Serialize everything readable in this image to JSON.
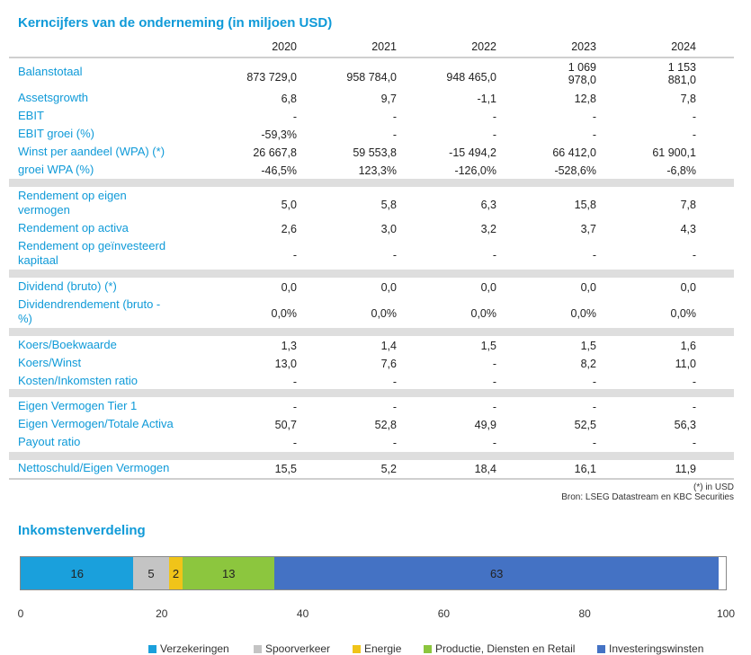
{
  "title": "Kerncijfers van de onderneming (in miljoen USD)",
  "years": [
    "2020",
    "2021",
    "2022",
    "2023",
    "2024"
  ],
  "groups": [
    {
      "rows": [
        {
          "label": "Balanstotaal",
          "values": [
            "873 729,0",
            "958 784,0",
            "948 465,0",
            "1 069\n978,0",
            "1 153\n881,0"
          ]
        },
        {
          "label": "Assetsgrowth",
          "values": [
            "6,8",
            "9,7",
            "-1,1",
            "12,8",
            "7,8"
          ]
        },
        {
          "label": "EBIT",
          "values": [
            "-",
            "-",
            "-",
            "-",
            "-"
          ]
        },
        {
          "label": "EBIT groei (%)",
          "values": [
            "-59,3%",
            "-",
            "-",
            "-",
            "-"
          ]
        },
        {
          "label": "Winst per aandeel (WPA) (*)",
          "values": [
            "26 667,8",
            "59 553,8",
            "-15 494,2",
            "66 412,0",
            "61 900,1"
          ]
        },
        {
          "label": "groei WPA (%)",
          "values": [
            "-46,5%",
            "123,3%",
            "-126,0%",
            "-528,6%",
            "-6,8%"
          ]
        }
      ]
    },
    {
      "rows": [
        {
          "label": "Rendement op eigen\nvermogen",
          "values": [
            "5,0",
            "5,8",
            "6,3",
            "15,8",
            "7,8"
          ]
        },
        {
          "label": "Rendement op activa",
          "values": [
            "2,6",
            "3,0",
            "3,2",
            "3,7",
            "4,3"
          ]
        },
        {
          "label": "Rendement op geïnvesteerd\nkapitaal",
          "values": [
            "-",
            "-",
            "-",
            "-",
            "-"
          ]
        }
      ]
    },
    {
      "rows": [
        {
          "label": "Dividend (bruto) (*)",
          "values": [
            "0,0",
            "0,0",
            "0,0",
            "0,0",
            "0,0"
          ]
        },
        {
          "label": "Dividendrendement (bruto -\n%)",
          "values": [
            "0,0%",
            "0,0%",
            "0,0%",
            "0,0%",
            "0,0%"
          ]
        }
      ]
    },
    {
      "rows": [
        {
          "label": "Koers/Boekwaarde",
          "values": [
            "1,3",
            "1,4",
            "1,5",
            "1,5",
            "1,6"
          ]
        },
        {
          "label": "Koers/Winst",
          "values": [
            "13,0",
            "7,6",
            "-",
            "8,2",
            "11,0"
          ]
        },
        {
          "label": "Kosten/Inkomsten ratio",
          "values": [
            "-",
            "-",
            "-",
            "-",
            "-"
          ]
        }
      ]
    },
    {
      "rows": [
        {
          "label": "Eigen Vermogen Tier 1",
          "values": [
            "-",
            "-",
            "-",
            "-",
            "-"
          ]
        },
        {
          "label": "Eigen Vermogen/Totale Activa",
          "values": [
            "50,7",
            "52,8",
            "49,9",
            "52,5",
            "56,3"
          ]
        },
        {
          "label": "Payout ratio",
          "values": [
            "-",
            "-",
            "-",
            "-",
            "-"
          ]
        }
      ]
    },
    {
      "rows": [
        {
          "label": "Nettoschuld/Eigen Vermogen",
          "values": [
            "15,5",
            "5,2",
            "18,4",
            "16,1",
            "11,9"
          ]
        }
      ]
    }
  ],
  "footnote": "(*) in USD",
  "source": "Bron: LSEG Datastream en KBC Securities",
  "income_title": "Inkomstenverdeling",
  "chart_data": {
    "type": "bar",
    "orientation": "horizontal-stacked",
    "title": "Inkomstenverdeling",
    "xlim": [
      0,
      100
    ],
    "xticks": [
      "0",
      "20",
      "40",
      "60",
      "80",
      "100"
    ],
    "series": [
      {
        "name": "Verzekeringen",
        "value": 16,
        "color": "#1aa0dc"
      },
      {
        "name": "Spoorverkeer",
        "value": 5,
        "color": "#c4c4c4"
      },
      {
        "name": "Energie",
        "value": 2,
        "color": "#f0c419"
      },
      {
        "name": "Productie, Diensten en Retail",
        "value": 13,
        "color": "#8cc63e"
      },
      {
        "name": "Investeringswinsten",
        "value": 63,
        "color": "#4472c4"
      }
    ],
    "legend": "bottom"
  }
}
